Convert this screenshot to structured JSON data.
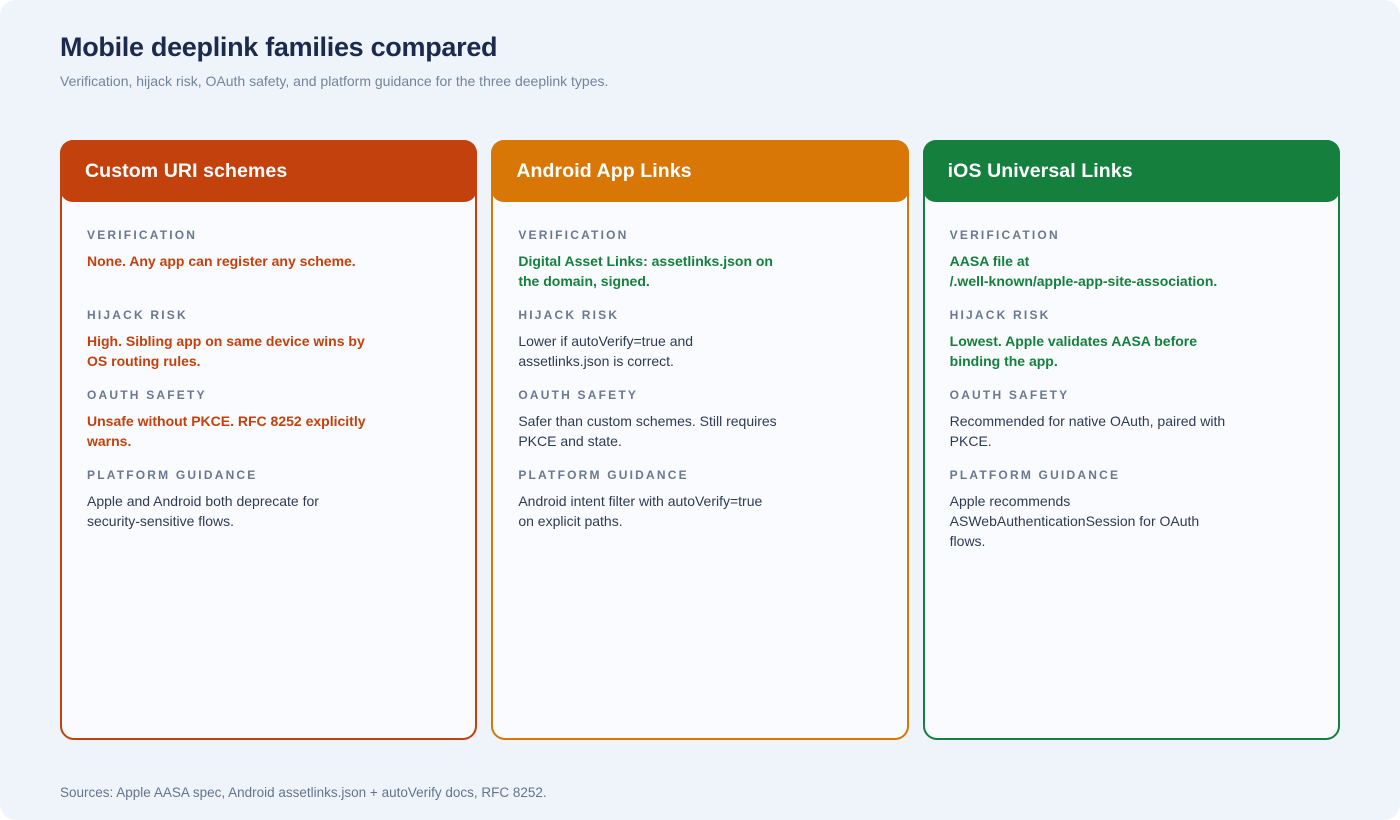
{
  "page": {
    "title": "Mobile deeplink families compared",
    "subtitle": "Verification, hijack risk, OAuth safety, and platform guidance for the three deeplink types.",
    "footer": "Sources: Apple AASA spec, Android assetlinks.json + autoVerify docs, RFC 8252."
  },
  "colors": {
    "page_background": "#eff4fb",
    "card_background": "#f9fbfe",
    "title_text": "#1b2a4e",
    "label_text": "#6a7891",
    "plain_text": "#2e3b55",
    "orange_accent": "#c2410c",
    "amber_accent": "#d97706",
    "green_accent": "#15803d"
  },
  "cards": [
    {
      "title": "Custom URI schemes",
      "accent": "#c2410c",
      "sections": [
        {
          "label": "VERIFICATION",
          "text": "None. Any app can register any scheme.",
          "style": "orange"
        },
        {
          "label": "HIJACK RISK",
          "text": "High. Sibling app on same device wins by\nOS routing rules.",
          "style": "orange"
        },
        {
          "label": "OAUTH SAFETY",
          "text": "Unsafe without PKCE. RFC 8252 explicitly\nwarns.",
          "style": "orange"
        },
        {
          "label": "PLATFORM GUIDANCE",
          "text": "Apple and Android both deprecate for\nsecurity-sensitive flows.",
          "style": "plain"
        }
      ]
    },
    {
      "title": "Android App Links",
      "accent": "#d97706",
      "sections": [
        {
          "label": "VERIFICATION",
          "text": "Digital Asset Links: assetlinks.json on\nthe domain, signed.",
          "style": "green"
        },
        {
          "label": "HIJACK RISK",
          "text": "Lower if autoVerify=true and\nassetlinks.json is correct.",
          "style": "plain"
        },
        {
          "label": "OAUTH SAFETY",
          "text": "Safer than custom schemes. Still requires\nPKCE and state.",
          "style": "plain"
        },
        {
          "label": "PLATFORM GUIDANCE",
          "text": "Android intent filter with autoVerify=true\non explicit paths.",
          "style": "plain"
        }
      ]
    },
    {
      "title": "iOS Universal Links",
      "accent": "#15803d",
      "sections": [
        {
          "label": "VERIFICATION",
          "text": "AASA file at\n/.well-known/apple-app-site-association.",
          "style": "green"
        },
        {
          "label": "HIJACK RISK",
          "text": "Lowest. Apple validates AASA before\nbinding the app.",
          "style": "green"
        },
        {
          "label": "OAUTH SAFETY",
          "text": "Recommended for native OAuth, paired with\nPKCE.",
          "style": "plain"
        },
        {
          "label": "PLATFORM GUIDANCE",
          "text": "Apple recommends\nASWebAuthenticationSession for OAuth\nflows.",
          "style": "plain"
        }
      ]
    }
  ]
}
